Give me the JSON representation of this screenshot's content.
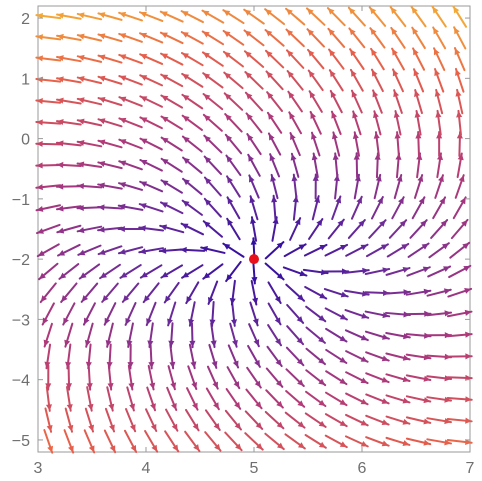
{
  "chart_data": {
    "type": "vector_field",
    "title": "",
    "xlabel": "",
    "ylabel": "",
    "xlim": [
      3,
      7
    ],
    "ylim": [
      -5.2,
      2.2
    ],
    "xticks": [
      3,
      4,
      5,
      6,
      7
    ],
    "yticks": [
      -5,
      -4,
      -3,
      -2,
      -1,
      0,
      1,
      2
    ],
    "tick_labels_x": [
      "3",
      "4",
      "5",
      "6",
      "7"
    ],
    "tick_labels_y": [
      "−5",
      "−4",
      "−3",
      "−2",
      "−1",
      "0",
      "1",
      "2"
    ],
    "field": {
      "description_formula_u": "p / r - 0.35 * q",
      "description_formula_v": "q / r + 0.35 * p",
      "vars": "p = x - 5, q = y + 2, r = sqrt(p^2 + q^2)",
      "x_samples": 21,
      "y_samples": 21
    },
    "colormap": [
      "#2a0aa0",
      "#6a2a9a",
      "#b23a78",
      "#e8604a",
      "#f7b733"
    ],
    "grid": false,
    "legend": "none",
    "point": {
      "x": 5,
      "y": -2,
      "color": "#e8101a"
    }
  }
}
